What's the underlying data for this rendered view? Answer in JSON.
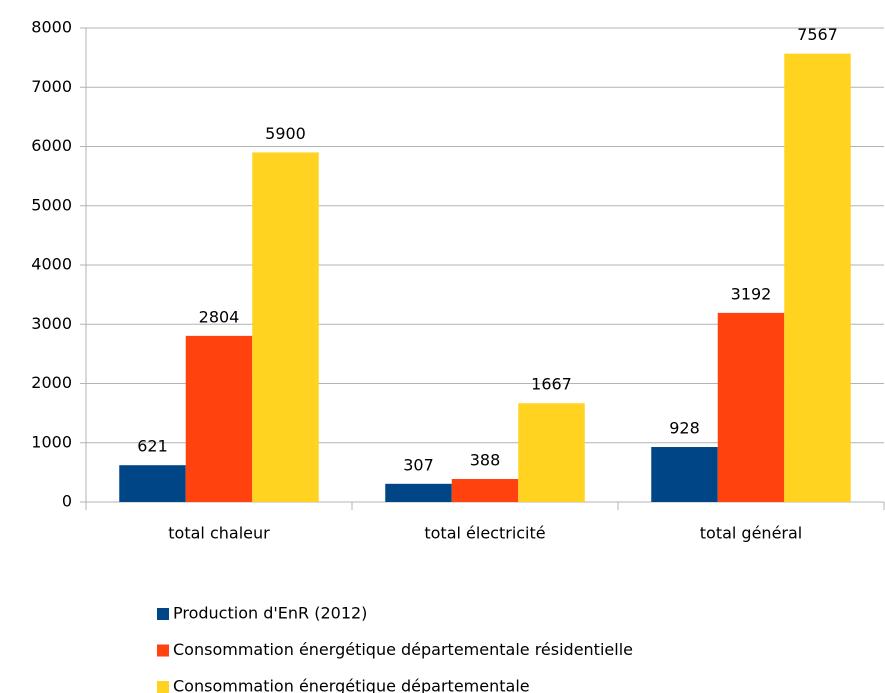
{
  "chart_data": {
    "type": "bar",
    "categories": [
      "total chaleur",
      "total électricité",
      "total général"
    ],
    "series": [
      {
        "name": "Production d'EnR (2012)",
        "color": "#004586",
        "values": [
          621,
          307,
          928
        ]
      },
      {
        "name": "Consommation énergétique départementale résidentielle",
        "color": "#ff420e",
        "values": [
          2804,
          388,
          3192
        ]
      },
      {
        "name": "Consommation énergétique départementale",
        "color": "#ffd320",
        "values": [
          5900,
          1667,
          7567
        ]
      }
    ],
    "ylim": [
      0,
      8000
    ],
    "yticks": [
      0,
      1000,
      2000,
      3000,
      4000,
      5000,
      6000,
      7000,
      8000
    ],
    "grid": true,
    "legend": "bottom"
  }
}
